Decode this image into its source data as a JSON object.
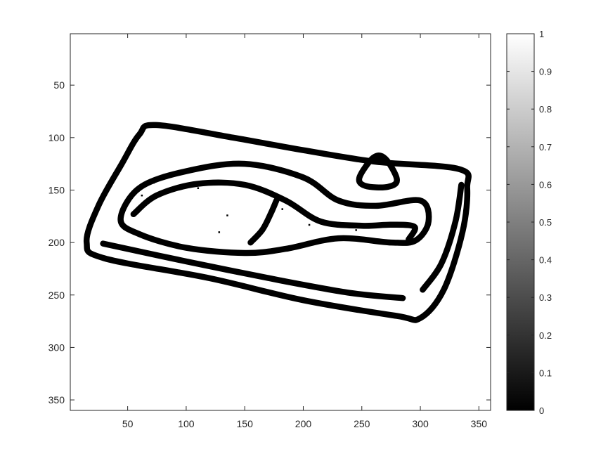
{
  "chart_data": {
    "type": "heatmap",
    "title": "",
    "xlabel": "",
    "ylabel": "",
    "colormap": "gray",
    "xlim": [
      1,
      360
    ],
    "ylim": [
      360,
      1
    ],
    "y_axis_direction": "reversed",
    "x_ticks": [
      50,
      100,
      150,
      200,
      250,
      300,
      350
    ],
    "y_ticks": [
      50,
      100,
      150,
      200,
      250,
      300,
      350
    ],
    "x_tick_labels": [
      "50",
      "100",
      "150",
      "200",
      "250",
      "300",
      "350"
    ],
    "y_tick_labels": [
      "50",
      "100",
      "150",
      "200",
      "250",
      "300",
      "350"
    ],
    "colorbar": {
      "limits": [
        0,
        1
      ],
      "ticks": [
        0,
        0.1,
        0.2,
        0.3,
        0.4,
        0.5,
        0.6,
        0.7,
        0.8,
        0.9,
        1
      ],
      "tick_labels": [
        "0",
        "0.1",
        "0.2",
        "0.3",
        "0.4",
        "0.5",
        "0.6",
        "0.7",
        "0.8",
        "0.9",
        "1"
      ]
    },
    "background_value": 1,
    "edge_value": 0,
    "edge_curves": [
      {
        "name": "tray-outer-rim",
        "closed": true,
        "points": [
          [
            74,
            88
          ],
          [
            140,
            100
          ],
          [
            200,
            112
          ],
          [
            262,
            123
          ],
          [
            333,
            130
          ],
          [
            340,
            148
          ],
          [
            336,
            190
          ],
          [
            320,
            245
          ],
          [
            300,
            272
          ],
          [
            280,
            270
          ],
          [
            200,
            255
          ],
          [
            120,
            234
          ],
          [
            30,
            215
          ],
          [
            15,
            200
          ],
          [
            25,
            165
          ],
          [
            45,
            125
          ],
          [
            60,
            97
          ]
        ]
      },
      {
        "name": "tray-inner-left-edge",
        "closed": false,
        "points": [
          [
            29,
            201
          ],
          [
            100,
            218
          ],
          [
            180,
            236
          ],
          [
            240,
            248
          ],
          [
            285,
            253
          ]
        ]
      },
      {
        "name": "tray-inner-right-edge",
        "closed": false,
        "points": [
          [
            335,
            145
          ],
          [
            330,
            180
          ],
          [
            318,
            220
          ],
          [
            302,
            245
          ]
        ]
      },
      {
        "name": "drumstick-outline",
        "closed": true,
        "points": [
          [
            44,
            178
          ],
          [
            60,
            148
          ],
          [
            100,
            132
          ],
          [
            150,
            125
          ],
          [
            200,
            138
          ],
          [
            230,
            160
          ],
          [
            262,
            165
          ],
          [
            300,
            160
          ],
          [
            307,
            180
          ],
          [
            296,
            198
          ],
          [
            275,
            200
          ],
          [
            230,
            196
          ],
          [
            185,
            206
          ],
          [
            150,
            210
          ],
          [
            100,
            205
          ],
          [
            60,
            192
          ]
        ]
      },
      {
        "name": "drumstick-inner-contour",
        "closed": false,
        "points": [
          [
            55,
            173
          ],
          [
            75,
            155
          ],
          [
            110,
            144
          ],
          [
            150,
            145
          ],
          [
            185,
            160
          ],
          [
            215,
            180
          ],
          [
            250,
            184
          ],
          [
            275,
            183
          ],
          [
            295,
            185
          ],
          [
            290,
            197
          ]
        ]
      },
      {
        "name": "bone-line",
        "closed": false,
        "points": [
          [
            155,
            200
          ],
          [
            165,
            188
          ],
          [
            172,
            173
          ],
          [
            177,
            160
          ]
        ]
      },
      {
        "name": "knob",
        "closed": true,
        "points": [
          [
            260,
            119
          ],
          [
            270,
            120
          ],
          [
            280,
            140
          ],
          [
            272,
            147
          ],
          [
            253,
            146
          ],
          [
            248,
            138
          ]
        ]
      }
    ]
  }
}
